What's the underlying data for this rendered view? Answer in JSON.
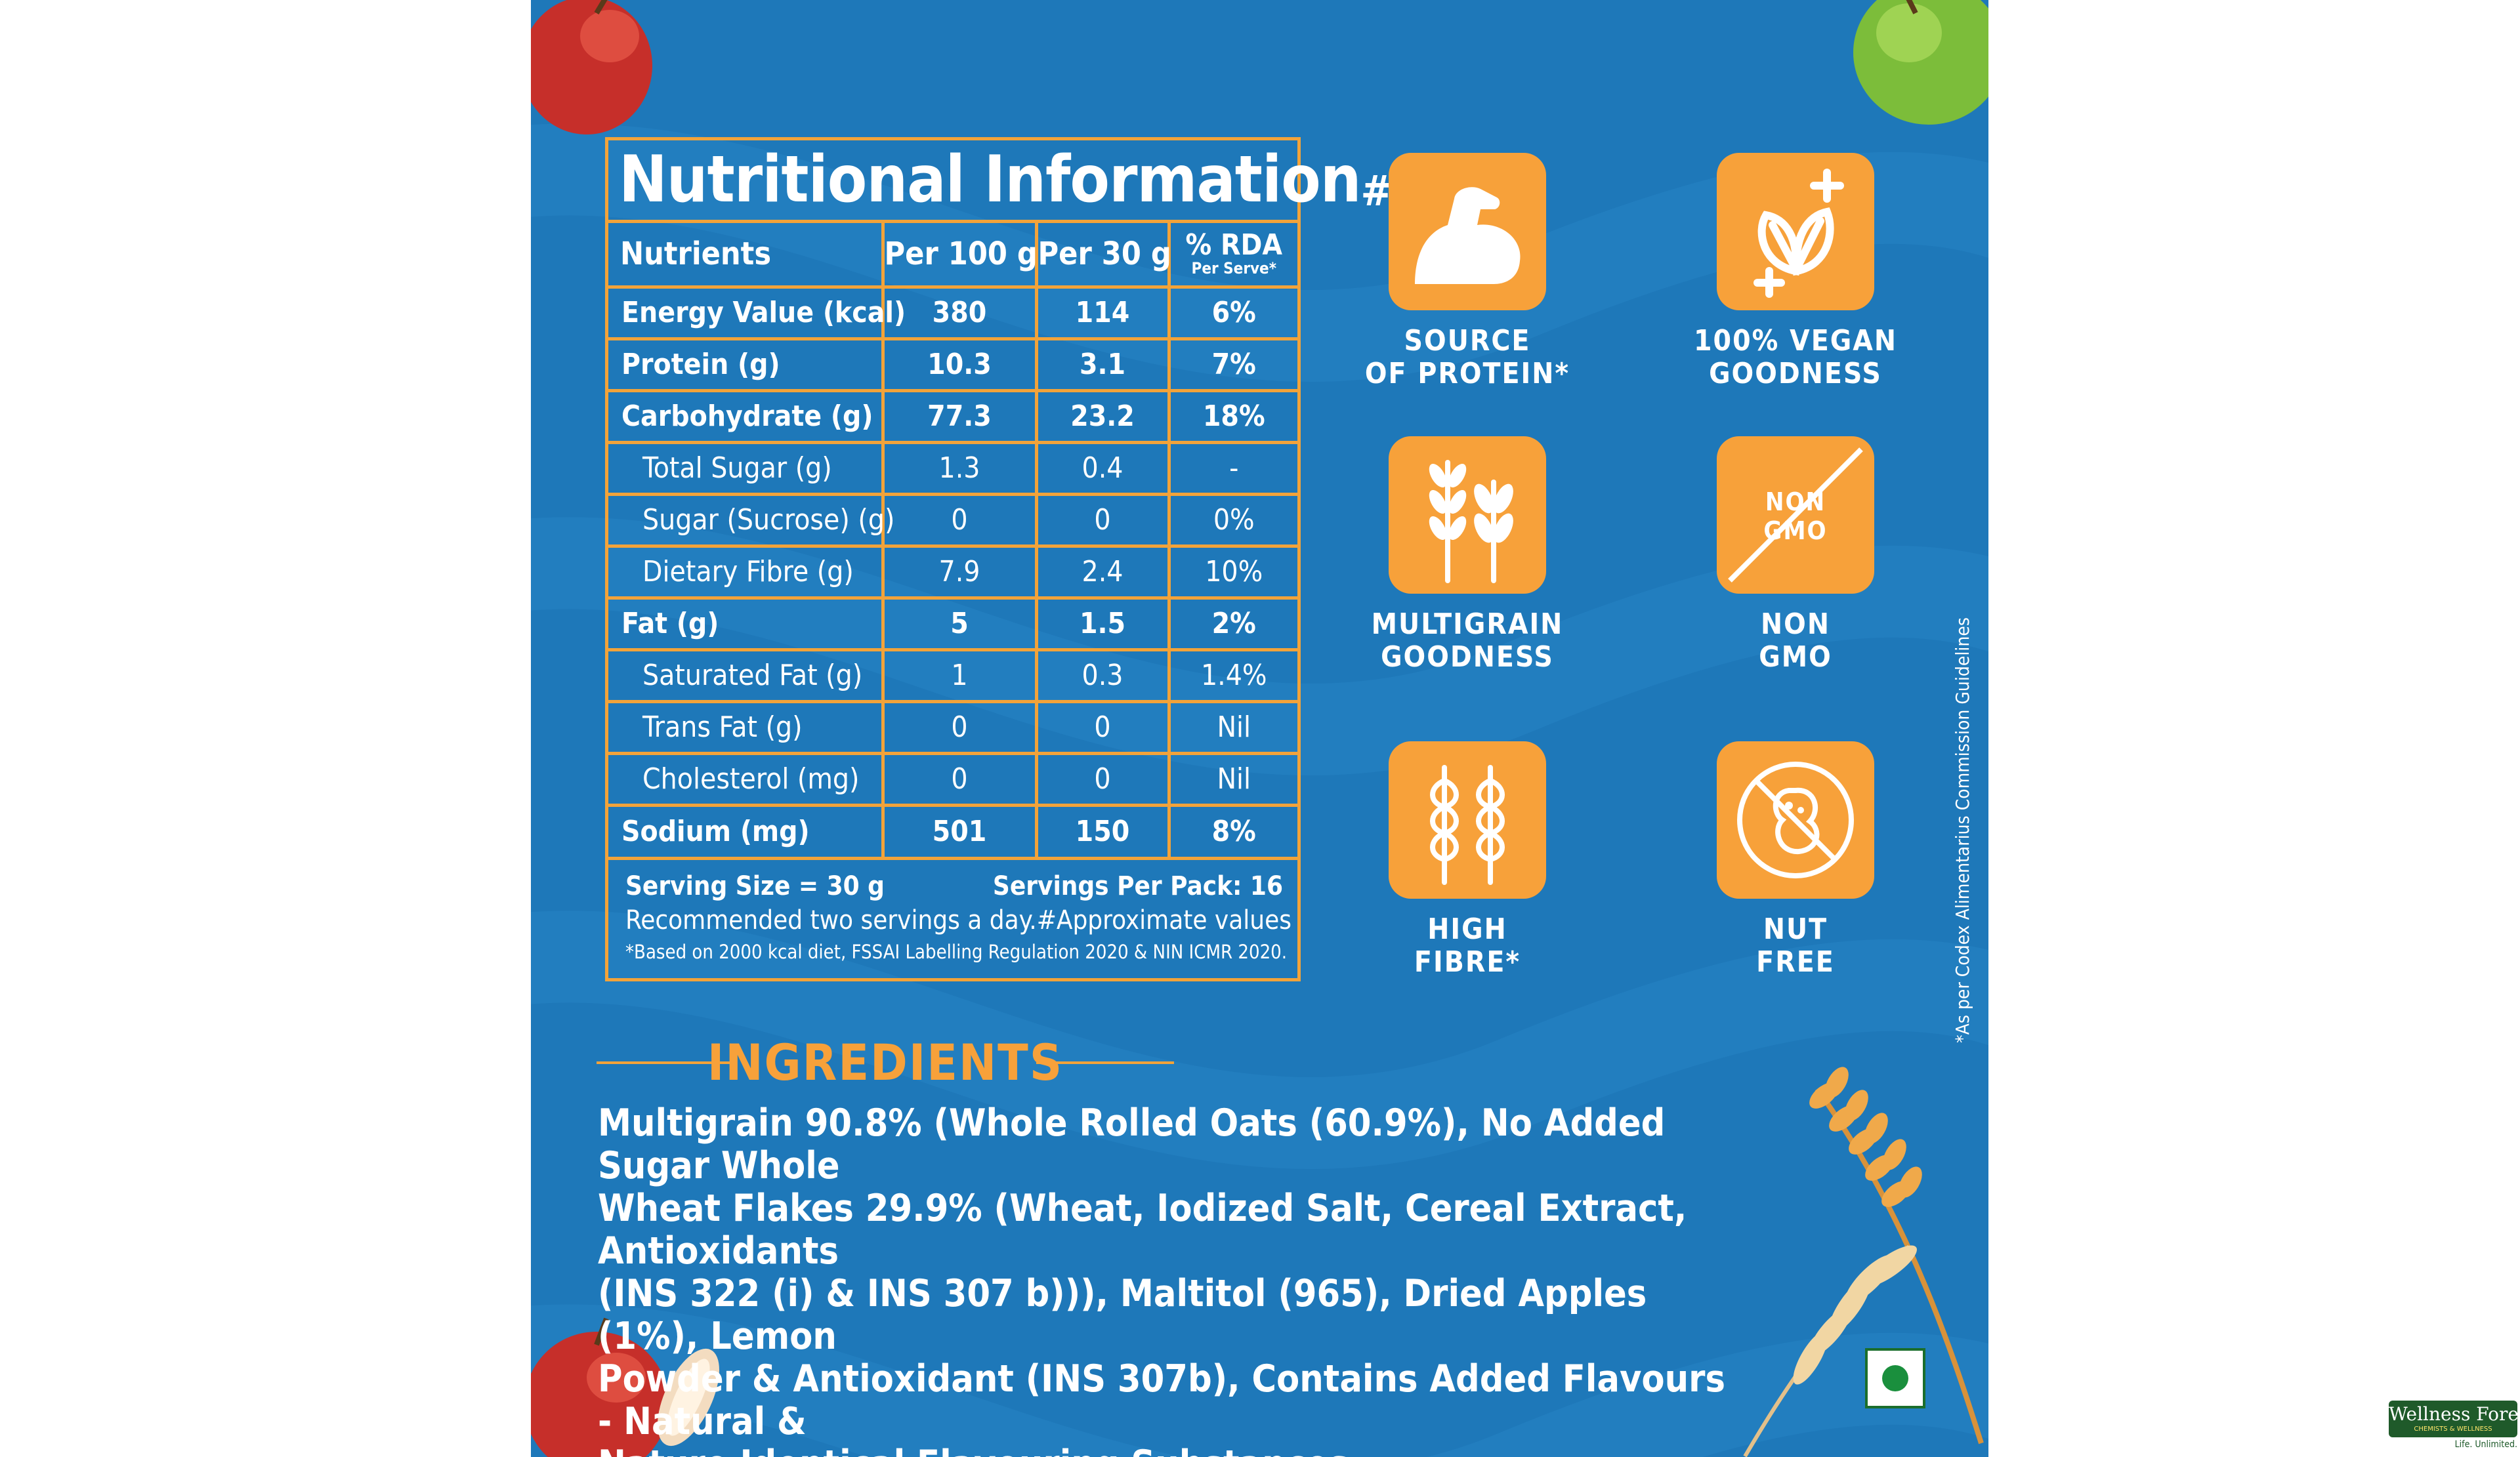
{
  "nutrition": {
    "title": "Nutritional Information",
    "title_mark": "#",
    "headers": {
      "nutrients": "Nutrients",
      "per100": "Per 100 g",
      "per30": "Per 30 g",
      "rda": "% RDA",
      "rda_sub": "Per Serve*"
    },
    "rows": [
      {
        "name": "Energy Value (kcal)",
        "per100": "380",
        "per30": "114",
        "rda": "6%"
      },
      {
        "name": "Protein (g)",
        "per100": "10.3",
        "per30": "3.1",
        "rda": "7%"
      },
      {
        "name": "Carbohydrate (g)",
        "per100": "77.3",
        "per30": "23.2",
        "rda": "18%"
      },
      {
        "name": "Total Sugar (g)",
        "per100": "1.3",
        "per30": "0.4",
        "rda": "-"
      },
      {
        "name": "Sugar (Sucrose) (g)",
        "per100": "0",
        "per30": "0",
        "rda": "0%"
      },
      {
        "name": "Dietary Fibre (g)",
        "per100": "7.9",
        "per30": "2.4",
        "rda": "10%"
      },
      {
        "name": "Fat (g)",
        "per100": "5",
        "per30": "1.5",
        "rda": "2%"
      },
      {
        "name": "Saturated Fat (g)",
        "per100": "1",
        "per30": "0.3",
        "rda": "1.4%"
      },
      {
        "name": "Trans Fat (g)",
        "per100": "0",
        "per30": "0",
        "rda": "Nil"
      },
      {
        "name": "Cholesterol (mg)",
        "per100": "0",
        "per30": "0",
        "rda": "Nil"
      },
      {
        "name": "Sodium (mg)",
        "per100": "501",
        "per30": "150",
        "rda": "8%"
      }
    ],
    "serving_size": "Serving Size = 30 g",
    "servings_per_pack": "Servings Per Pack: 16",
    "recommendation": "Recommended two servings a day.",
    "approx": "#Approximate values",
    "footnote": "*Based on 2000 kcal diet, FSSAI Labelling Regulation 2020 & NIN ICMR 2020."
  },
  "badges": {
    "protein": {
      "line1": "SOURCE",
      "line2": "OF PROTEIN*",
      "icon": "flexed-arm-icon"
    },
    "vegan": {
      "line1": "100% VEGAN",
      "line2": "GOODNESS",
      "icon": "leaves-plus-icon"
    },
    "multigrain": {
      "line1": "MULTIGRAIN",
      "line2": "GOODNESS",
      "icon": "grain-stalks-icon"
    },
    "nongmo": {
      "line1": "NON",
      "line2": "GMO",
      "tile_line1": "NON",
      "tile_line2": "GMO",
      "icon": "non-gmo-icon"
    },
    "fibre": {
      "line1": "HIGH",
      "line2": "FIBRE*",
      "icon": "wheat-icon"
    },
    "nut": {
      "line1": "NUT",
      "line2": "FREE",
      "icon": "no-nut-icon"
    }
  },
  "side_note": "*As per Codex Alimentarius Commission Guidelines",
  "ingredients": {
    "title": "INGREDIENTS",
    "lines": [
      "Multigrain 90.8% (Whole Rolled Oats (60.9%), No Added Sugar Whole",
      "Wheat Flakes 29.9% (Wheat, Iodized Salt, Cereal Extract, Antioxidants",
      "(INS 322 (i) & INS 307 b))), Maltitol (965), Dried Apples (1%), Lemon",
      "Powder & Antioxidant (INS 307b), Contains Added Flavours - Natural &",
      "Nature Identical Flavouring Substances."
    ]
  },
  "brand": {
    "name": "Wellness Forever",
    "sub": "CHEMISTS & WELLNESS",
    "tagline": "Life. Unlimited."
  },
  "colors": {
    "panel_blue": "#1e78b9",
    "accent_orange": "#f7a13a",
    "border_orange": "#f2a33a",
    "veg_green": "#1a8f3d"
  }
}
